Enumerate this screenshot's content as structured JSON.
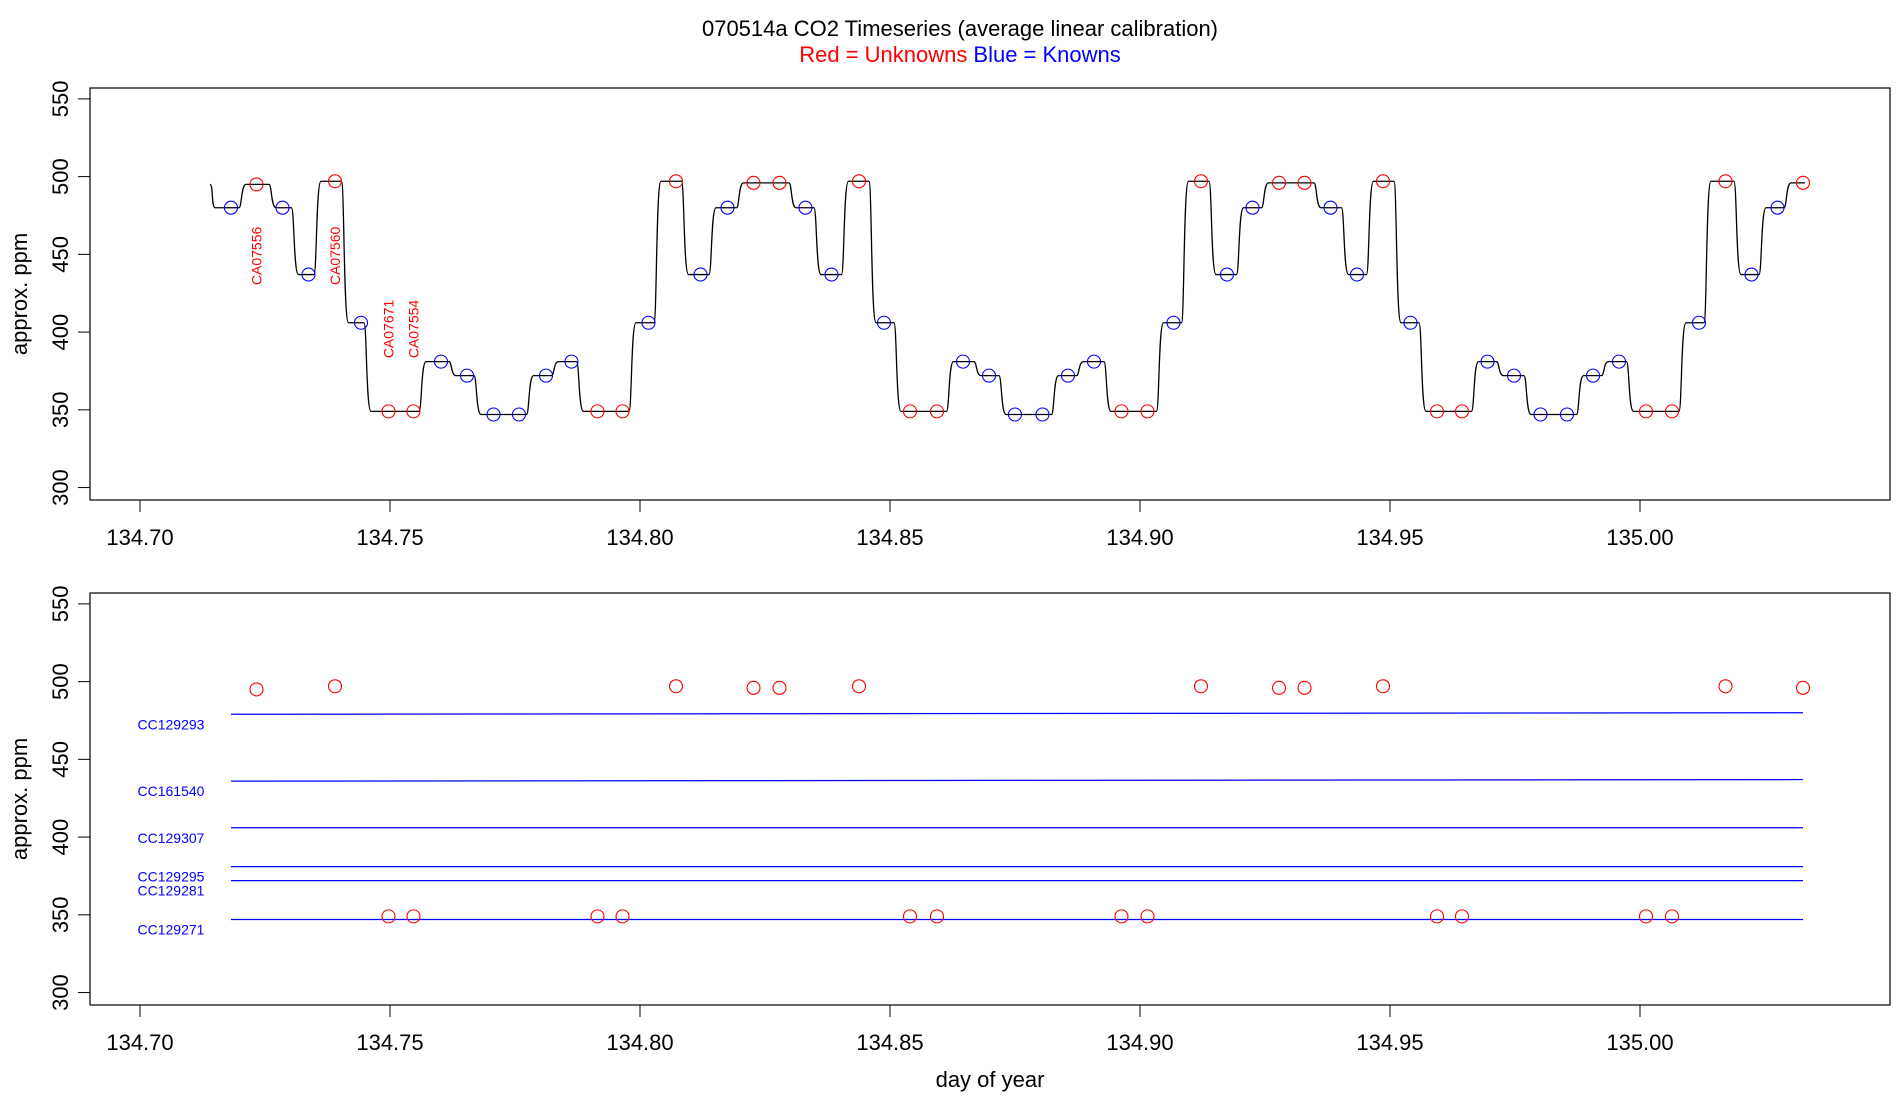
{
  "title": "070514a   CO2 Timeseries (average linear calibration)",
  "legend": {
    "red_label": "Red = Unknowns",
    "blue_label": "Blue = Knowns"
  },
  "colors": {
    "unknown": "#ff0000",
    "known": "#0000ff",
    "trace": "#000000",
    "frame": "#000000"
  },
  "chart_data": [
    {
      "type": "line",
      "ylabel": "approx. ppm",
      "xlabel": "",
      "xlim": [
        134.69,
        135.05
      ],
      "ylim": [
        292,
        557
      ],
      "xticks": [
        "134.70",
        "134.75",
        "134.80",
        "134.85",
        "134.90",
        "134.95",
        "135.00"
      ],
      "xtick_values": [
        134.7,
        134.75,
        134.8,
        134.85,
        134.9,
        134.95,
        135.0
      ],
      "yticks": [
        "300",
        "350",
        "400",
        "450",
        "500",
        "550"
      ],
      "ytick_values": [
        300,
        350,
        400,
        450,
        500,
        550
      ],
      "trace_segments": [
        {
          "x0": 134.714,
          "x1": 134.7205,
          "y": 480
        },
        {
          "x0": 134.7205,
          "x1": 134.7265,
          "y": 495
        },
        {
          "x0": 134.7265,
          "x1": 134.731,
          "y": 480
        },
        {
          "x0": 134.731,
          "x1": 134.7355,
          "y": 437
        },
        {
          "x0": 134.7355,
          "x1": 134.741,
          "y": 497
        },
        {
          "x0": 134.741,
          "x1": 134.7455,
          "y": 406
        },
        {
          "x0": 134.7455,
          "x1": 134.7565,
          "y": 349
        },
        {
          "x0": 134.7565,
          "x1": 134.7625,
          "y": 381
        },
        {
          "x0": 134.7625,
          "x1": 134.7675,
          "y": 372
        },
        {
          "x0": 134.7675,
          "x1": 134.778,
          "y": 347
        },
        {
          "x0": 134.778,
          "x1": 134.783,
          "y": 372
        },
        {
          "x0": 134.783,
          "x1": 134.788,
          "y": 381
        },
        {
          "x0": 134.788,
          "x1": 134.7985,
          "y": 349
        },
        {
          "x0": 134.7985,
          "x1": 134.8035,
          "y": 406
        },
        {
          "x0": 134.8035,
          "x1": 134.809,
          "y": 497
        },
        {
          "x0": 134.809,
          "x1": 134.8145,
          "y": 437
        },
        {
          "x0": 134.8145,
          "x1": 134.82,
          "y": 480
        },
        {
          "x0": 134.82,
          "x1": 134.8305,
          "y": 496
        },
        {
          "x0": 134.8305,
          "x1": 134.8355,
          "y": 480
        },
        {
          "x0": 134.8355,
          "x1": 134.841,
          "y": 437
        },
        {
          "x0": 134.841,
          "x1": 134.8465,
          "y": 497
        },
        {
          "x0": 134.8465,
          "x1": 134.8515,
          "y": 406
        },
        {
          "x0": 134.8515,
          "x1": 134.862,
          "y": 349
        },
        {
          "x0": 134.862,
          "x1": 134.8675,
          "y": 381
        },
        {
          "x0": 134.8675,
          "x1": 134.8725,
          "y": 372
        },
        {
          "x0": 134.8725,
          "x1": 134.883,
          "y": 347
        },
        {
          "x0": 134.883,
          "x1": 134.888,
          "y": 372
        },
        {
          "x0": 134.888,
          "x1": 134.8935,
          "y": 381
        },
        {
          "x0": 134.8935,
          "x1": 134.904,
          "y": 349
        },
        {
          "x0": 134.904,
          "x1": 134.909,
          "y": 406
        },
        {
          "x0": 134.909,
          "x1": 134.9145,
          "y": 497
        },
        {
          "x0": 134.9145,
          "x1": 134.92,
          "y": 437
        },
        {
          "x0": 134.92,
          "x1": 134.925,
          "y": 480
        },
        {
          "x0": 134.925,
          "x1": 134.9355,
          "y": 496
        },
        {
          "x0": 134.9355,
          "x1": 134.941,
          "y": 480
        },
        {
          "x0": 134.941,
          "x1": 134.946,
          "y": 437
        },
        {
          "x0": 134.946,
          "x1": 134.9515,
          "y": 497
        },
        {
          "x0": 134.9515,
          "x1": 134.9565,
          "y": 406
        },
        {
          "x0": 134.9565,
          "x1": 134.967,
          "y": 349
        },
        {
          "x0": 134.967,
          "x1": 134.972,
          "y": 381
        },
        {
          "x0": 134.972,
          "x1": 134.9775,
          "y": 372
        },
        {
          "x0": 134.9775,
          "x1": 134.988,
          "y": 347
        },
        {
          "x0": 134.988,
          "x1": 134.993,
          "y": 372
        },
        {
          "x0": 134.993,
          "x1": 134.998,
          "y": 381
        },
        {
          "x0": 134.998,
          "x1": 135.0085,
          "y": 349
        },
        {
          "x0": 135.0085,
          "x1": 135.0135,
          "y": 406
        },
        {
          "x0": 135.0135,
          "x1": 135.0195,
          "y": 497
        },
        {
          "x0": 135.0195,
          "x1": 135.0245,
          "y": 437
        },
        {
          "x0": 135.0245,
          "x1": 135.0295,
          "y": 480
        },
        {
          "x0": 135.0295,
          "x1": 135.033,
          "y": 496
        }
      ],
      "trace_start_y": 495,
      "series": [
        {
          "name": "Unknowns",
          "color": "#ff0000",
          "x": [
            134.7233,
            134.739,
            134.7497,
            134.7547,
            134.7915,
            134.7965,
            134.8072,
            134.8227,
            134.8279,
            134.8438,
            134.854,
            134.8594,
            134.8963,
            134.9015,
            134.9122,
            134.9278,
            134.9329,
            134.9486,
            134.9594,
            134.9644,
            135.0012,
            135.0064,
            135.0171,
            135.0326
          ],
          "y": [
            495,
            497,
            349,
            349,
            349,
            349,
            497,
            496,
            496,
            497,
            349,
            349,
            349,
            349,
            497,
            496,
            496,
            497,
            349,
            349,
            349,
            349,
            497,
            496
          ]
        },
        {
          "name": "Knowns",
          "color": "#0000ff",
          "x": [
            134.7182,
            134.7285,
            134.7337,
            134.7442,
            134.7602,
            134.7654,
            134.7707,
            134.7758,
            134.7812,
            134.7863,
            134.8017,
            134.8121,
            134.8175,
            134.8331,
            134.8383,
            134.8488,
            134.8646,
            134.8698,
            134.875,
            134.8805,
            134.8856,
            134.8908,
            134.9067,
            134.9174,
            134.9225,
            134.9381,
            134.9434,
            134.9541,
            134.9695,
            134.9748,
            134.9801,
            134.9854,
            134.9906,
            134.9958,
            135.0118,
            135.0223,
            135.0275
          ],
          "y": [
            480,
            480,
            437,
            406,
            381,
            372,
            347,
            347,
            372,
            381,
            406,
            437,
            480,
            480,
            437,
            406,
            381,
            372,
            347,
            347,
            372,
            381,
            406,
            437,
            480,
            480,
            437,
            406,
            381,
            372,
            347,
            347,
            372,
            381,
            406,
            437,
            480
          ]
        }
      ],
      "annotations": [
        {
          "text": "CA07556",
          "x": 134.7233,
          "y": 449
        },
        {
          "text": "CA07560",
          "x": 134.739,
          "y": 449
        },
        {
          "text": "CA07671",
          "x": 134.7497,
          "y": 402
        },
        {
          "text": "CA07554",
          "x": 134.7547,
          "y": 402
        }
      ]
    },
    {
      "type": "scatter",
      "ylabel": "approx. ppm",
      "xlabel": "day of year",
      "xlim": [
        134.69,
        135.05
      ],
      "ylim": [
        292,
        557
      ],
      "xticks": [
        "134.70",
        "134.75",
        "134.80",
        "134.85",
        "134.90",
        "134.95",
        "135.00"
      ],
      "xtick_values": [
        134.7,
        134.75,
        134.8,
        134.85,
        134.9,
        134.95,
        135.0
      ],
      "yticks": [
        "300",
        "350",
        "400",
        "450",
        "500",
        "550"
      ],
      "ytick_values": [
        300,
        350,
        400,
        450,
        500,
        550
      ],
      "reference_lines": [
        {
          "name": "CC129293",
          "y0": 479,
          "y1": 480
        },
        {
          "name": "CC161540",
          "y0": 436,
          "y1": 437
        },
        {
          "name": "CC129307",
          "y0": 406,
          "y1": 406
        },
        {
          "name": "CC129295",
          "y0": 381,
          "y1": 381
        },
        {
          "name": "CC129281",
          "y0": 372,
          "y1": 372
        },
        {
          "name": "CC129271",
          "y0": 347,
          "y1": 347
        }
      ],
      "reference_x": [
        134.7182,
        135.0326
      ],
      "series": [
        {
          "name": "Unknowns",
          "color": "#ff0000",
          "x": [
            134.7233,
            134.739,
            134.7497,
            134.7547,
            134.7915,
            134.7965,
            134.8072,
            134.8227,
            134.8279,
            134.8438,
            134.854,
            134.8594,
            134.8963,
            134.9015,
            134.9122,
            134.9278,
            134.9329,
            134.9486,
            134.9594,
            134.9644,
            135.0012,
            135.0064,
            135.0171,
            135.0326
          ],
          "y": [
            495,
            497,
            349,
            349,
            349,
            349,
            497,
            496,
            496,
            497,
            349,
            349,
            349,
            349,
            497,
            496,
            496,
            497,
            349,
            349,
            349,
            349,
            497,
            496
          ]
        }
      ]
    }
  ]
}
